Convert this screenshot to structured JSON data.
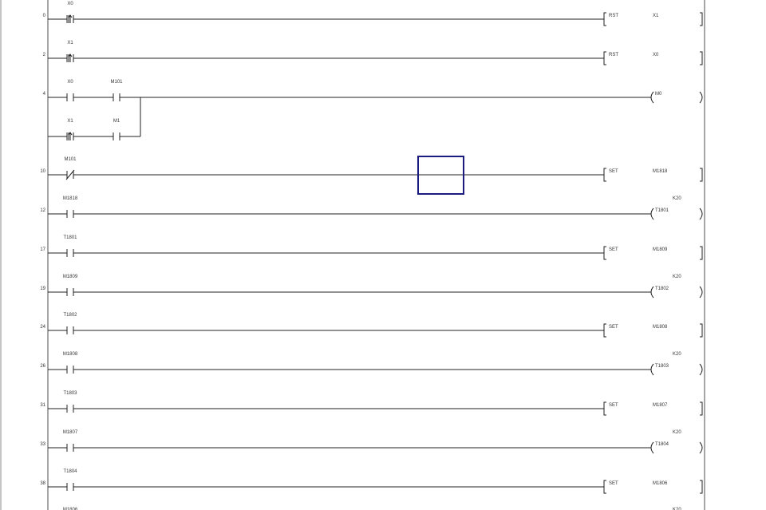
{
  "colors": {
    "rail": "#888888",
    "wire": "#222222",
    "cursor": "#1a1a80"
  },
  "rungs": [
    {
      "step": "0",
      "contacts": [
        {
          "label": "X0",
          "type": "rising"
        }
      ],
      "output": {
        "kind": "instr",
        "instr": "RST",
        "operand": "X1"
      }
    },
    {
      "step": "2",
      "contacts": [
        {
          "label": "X1",
          "type": "rising"
        }
      ],
      "output": {
        "kind": "instr",
        "instr": "RST",
        "operand": "X0"
      }
    },
    {
      "step": "4",
      "contacts": [
        {
          "label": "X0",
          "type": "no"
        },
        {
          "label": "M101",
          "type": "no"
        }
      ],
      "branch": [
        {
          "label": "X1",
          "type": "rising"
        },
        {
          "label": "M1",
          "type": "no"
        }
      ],
      "output": {
        "kind": "coil",
        "operand": "M0"
      }
    },
    {
      "step": "10",
      "contacts": [
        {
          "label": "M101",
          "type": "nc"
        }
      ],
      "output": {
        "kind": "instr",
        "instr": "SET",
        "operand": "M1818"
      }
    },
    {
      "step": "12",
      "contacts": [
        {
          "label": "M1818",
          "type": "no"
        }
      ],
      "output": {
        "kind": "coil",
        "operand": "T1801",
        "k": "K20"
      }
    },
    {
      "step": "17",
      "contacts": [
        {
          "label": "T1801",
          "type": "no"
        }
      ],
      "output": {
        "kind": "instr",
        "instr": "SET",
        "operand": "M1809"
      }
    },
    {
      "step": "19",
      "contacts": [
        {
          "label": "M1809",
          "type": "no"
        }
      ],
      "output": {
        "kind": "coil",
        "operand": "T1802",
        "k": "K20"
      }
    },
    {
      "step": "24",
      "contacts": [
        {
          "label": "T1802",
          "type": "no"
        }
      ],
      "output": {
        "kind": "instr",
        "instr": "SET",
        "operand": "M1808"
      }
    },
    {
      "step": "26",
      "contacts": [
        {
          "label": "M1808",
          "type": "no"
        }
      ],
      "output": {
        "kind": "coil",
        "operand": "T1803",
        "k": "K20"
      }
    },
    {
      "step": "31",
      "contacts": [
        {
          "label": "T1803",
          "type": "no"
        }
      ],
      "output": {
        "kind": "instr",
        "instr": "SET",
        "operand": "M1807"
      }
    },
    {
      "step": "33",
      "contacts": [
        {
          "label": "M1807",
          "type": "no"
        }
      ],
      "output": {
        "kind": "coil",
        "operand": "T1804",
        "k": "K20"
      }
    },
    {
      "step": "38",
      "contacts": [
        {
          "label": "T1804",
          "type": "no"
        }
      ],
      "output": {
        "kind": "instr",
        "instr": "SET",
        "operand": "M1806"
      }
    },
    {
      "step": "",
      "contacts": [
        {
          "label": "M1806",
          "type": "no"
        }
      ],
      "output": {
        "kind": "coil",
        "operand": "",
        "k": "K20"
      }
    }
  ]
}
